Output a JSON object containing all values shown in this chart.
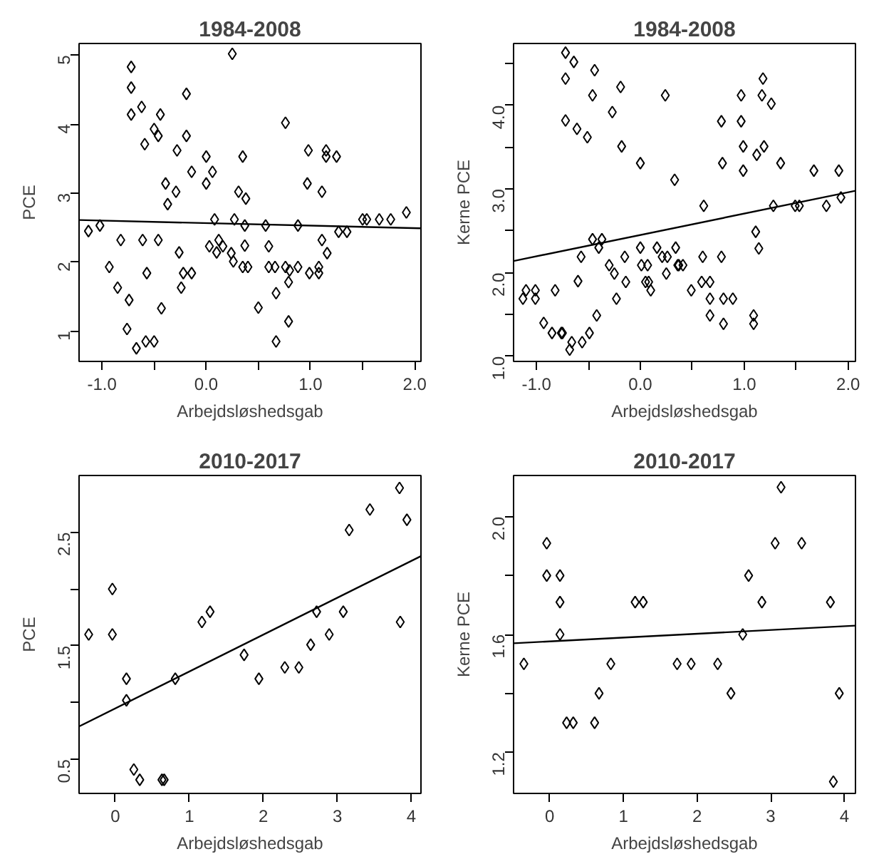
{
  "chart_data": [
    {
      "type": "scatter",
      "title": "1984-2008",
      "xlabel": "Arbejdsløshedsgab",
      "ylabel": "PCE",
      "marker": "diamond",
      "grid": false,
      "xlim": [
        -1.22,
        2.06
      ],
      "ylim": [
        0.56,
        5.17
      ],
      "xticks": [
        {
          "value": -1.0,
          "label": "-1.0"
        },
        {
          "value": -0.5,
          "label": null
        },
        {
          "value": 0,
          "label": "0.0"
        },
        {
          "value": 0.5,
          "label": null
        },
        {
          "value": 1,
          "label": "1.0"
        },
        {
          "value": 1.5,
          "label": null
        },
        {
          "value": 2,
          "label": "2.0"
        }
      ],
      "yticks": [
        1,
        2,
        3,
        4,
        5
      ],
      "series": [
        {
          "color": "#000000",
          "x": [
            -1.13,
            -1.02,
            -0.93,
            -0.85,
            -0.82,
            -0.76,
            -0.74,
            -0.72,
            -0.72,
            -0.72,
            -0.67,
            -0.62,
            -0.59,
            -0.61,
            -0.58,
            -0.57,
            -0.5,
            -0.5,
            -0.46,
            -0.44,
            -0.46,
            -0.43,
            -0.39,
            -0.37,
            -0.29,
            -0.28,
            -0.26,
            -0.24,
            -0.22,
            -0.19,
            -0.19,
            -0.14,
            -0.14,
            0.0,
            0.0,
            0.03,
            0.06,
            0.08,
            0.1,
            0.12,
            0.16,
            0.24,
            0.26,
            0.25,
            0.27,
            0.31,
            0.35,
            0.38,
            0.37,
            0.35,
            0.37,
            0.4,
            0.5,
            0.57,
            0.6,
            0.6,
            0.66,
            0.67,
            0.67,
            0.76,
            0.76,
            0.79,
            0.79,
            0.8,
            0.88,
            0.88,
            0.98,
            0.97,
            0.99,
            1.11,
            1.08,
            1.08,
            1.11,
            1.15,
            1.15,
            1.16,
            1.25,
            1.27,
            1.35,
            1.5,
            1.54,
            1.66,
            1.77,
            1.92
          ],
          "values": [
            2.45,
            2.53,
            1.93,
            1.63,
            2.32,
            1.03,
            1.45,
            4.83,
            4.53,
            4.14,
            0.75,
            4.25,
            3.71,
            2.32,
            0.85,
            1.84,
            0.85,
            3.93,
            3.83,
            4.14,
            2.32,
            1.33,
            3.14,
            2.84,
            3.02,
            3.62,
            2.14,
            1.63,
            1.84,
            4.44,
            3.83,
            3.31,
            1.84,
            3.53,
            3.14,
            2.23,
            3.31,
            2.62,
            2.14,
            2.32,
            2.23,
            2.13,
            2.01,
            5.02,
            2.62,
            3.02,
            3.53,
            2.92,
            2.24,
            1.93,
            2.53,
            1.93,
            1.34,
            2.53,
            2.23,
            1.93,
            1.93,
            1.55,
            0.85,
            4.02,
            1.93,
            1.71,
            1.14,
            1.88,
            2.53,
            1.93,
            3.62,
            3.14,
            1.84,
            3.02,
            1.93,
            1.84,
            2.32,
            3.62,
            3.53,
            2.13,
            3.53,
            2.44,
            2.44,
            2.62,
            2.62,
            2.62,
            2.62,
            2.72
          ]
        },
        {
          "type": "line",
          "marker": "none",
          "color": "#000000",
          "x": [
            -1.22,
            2.06
          ],
          "values": [
            2.61,
            2.49
          ]
        }
      ]
    },
    {
      "type": "scatter",
      "title": "1984-2008",
      "xlabel": "Arbejdsløshedsgab",
      "ylabel": "Kerne PCE",
      "marker": "diamond",
      "grid": false,
      "xlim": [
        -1.22,
        2.07
      ],
      "ylim": [
        0.94,
        4.74
      ],
      "xticks": [
        {
          "value": -1.0,
          "label": "-1.0"
        },
        {
          "value": -0.5,
          "label": null
        },
        {
          "value": 0,
          "label": "0.0"
        },
        {
          "value": 0.5,
          "label": null
        },
        {
          "value": 1,
          "label": "1.0"
        },
        {
          "value": 1.5,
          "label": null
        },
        {
          "value": 2,
          "label": "2.0"
        }
      ],
      "yticks": [
        {
          "value": 1,
          "label": "1.0"
        },
        {
          "value": 1.5,
          "label": null
        },
        {
          "value": 2,
          "label": "2.0"
        },
        {
          "value": 2.5,
          "label": null
        },
        {
          "value": 3,
          "label": "3.0"
        },
        {
          "value": 3.5,
          "label": null
        },
        {
          "value": 4,
          "label": "4.0"
        },
        {
          "value": 4.5,
          "label": null
        }
      ],
      "series": [
        {
          "color": "#000000",
          "x": [
            -1.13,
            -1.1,
            -1.01,
            -1.01,
            -0.93,
            -0.85,
            -0.82,
            -0.76,
            -0.75,
            -0.72,
            -0.72,
            -0.72,
            -0.68,
            -0.66,
            -0.64,
            -0.61,
            -0.6,
            -0.57,
            -0.56,
            -0.51,
            -0.49,
            -0.46,
            -0.46,
            -0.44,
            -0.42,
            -0.4,
            -0.37,
            -0.3,
            -0.27,
            -0.25,
            -0.23,
            -0.19,
            -0.18,
            -0.15,
            -0.14,
            0.0,
            0.0,
            0.01,
            0.05,
            0.07,
            0.08,
            0.1,
            0.16,
            0.21,
            0.24,
            0.25,
            0.26,
            0.33,
            0.34,
            0.36,
            0.37,
            0.41,
            0.49,
            0.61,
            0.6,
            0.59,
            0.67,
            0.67,
            0.67,
            0.78,
            0.79,
            0.78,
            0.8,
            0.8,
            0.89,
            0.97,
            0.97,
            0.99,
            0.99,
            1.09,
            1.09,
            1.11,
            1.12,
            1.14,
            1.18,
            1.17,
            1.19,
            1.26,
            1.28,
            1.35,
            1.49,
            1.53,
            1.67,
            1.79,
            1.91,
            1.93
          ],
          "values": [
            1.69,
            1.79,
            1.79,
            1.69,
            1.4,
            1.28,
            1.79,
            1.28,
            1.28,
            4.63,
            4.32,
            3.82,
            1.08,
            1.17,
            4.52,
            3.72,
            1.9,
            2.19,
            1.17,
            3.62,
            1.28,
            4.12,
            2.4,
            4.42,
            1.49,
            2.3,
            2.4,
            2.09,
            3.92,
            1.99,
            1.69,
            4.22,
            3.51,
            2.19,
            1.89,
            3.31,
            2.3,
            2.09,
            1.89,
            2.09,
            1.89,
            1.79,
            2.3,
            2.19,
            4.12,
            1.99,
            2.19,
            3.11,
            2.3,
            2.09,
            2.09,
            2.09,
            1.79,
            2.8,
            2.19,
            1.89,
            1.89,
            1.69,
            1.49,
            3.81,
            3.31,
            2.19,
            1.69,
            1.39,
            1.69,
            4.12,
            3.81,
            3.51,
            3.22,
            1.49,
            1.39,
            2.49,
            3.41,
            2.29,
            4.32,
            4.12,
            3.51,
            4.02,
            2.8,
            3.31,
            2.8,
            2.8,
            3.22,
            2.8,
            3.22,
            2.9
          ]
        },
        {
          "type": "line",
          "marker": "none",
          "color": "#000000",
          "x": [
            -1.22,
            2.07
          ],
          "values": [
            2.14,
            2.98
          ]
        }
      ]
    },
    {
      "type": "scatter",
      "title": "2010-2017",
      "xlabel": "Arbejdsløshedsgab",
      "ylabel": "PCE",
      "marker": "diamond",
      "grid": false,
      "xlim": [
        -0.49,
        4.13
      ],
      "ylim": [
        0.2,
        3.0
      ],
      "xticks": [
        0,
        1,
        2,
        3,
        4
      ],
      "yticks": [
        0.5,
        {
          "value": 1.0,
          "label": null
        },
        1.5,
        {
          "value": 2.0,
          "label": null
        },
        2.5
      ],
      "series": [
        {
          "color": "#000000",
          "x": [
            -0.36,
            -0.04,
            -0.04,
            0.15,
            0.15,
            0.25,
            0.33,
            0.63,
            0.66,
            0.81,
            1.17,
            1.28,
            1.74,
            1.94,
            2.29,
            2.48,
            2.64,
            2.72,
            2.89,
            3.08,
            3.16,
            3.44,
            3.84,
            3.85,
            3.94
          ],
          "values": [
            1.6,
            2.0,
            1.6,
            1.21,
            1.02,
            0.41,
            0.32,
            0.32,
            0.32,
            1.21,
            1.71,
            1.8,
            1.42,
            1.21,
            1.31,
            1.31,
            1.51,
            1.8,
            1.6,
            1.8,
            2.52,
            2.7,
            2.89,
            1.71,
            2.61
          ]
        },
        {
          "type": "line",
          "marker": "none",
          "color": "#000000",
          "x": [
            -0.49,
            4.13
          ],
          "values": [
            0.79,
            2.29
          ]
        }
      ]
    },
    {
      "type": "scatter",
      "title": "2010-2017",
      "xlabel": "Arbejdsløshedsgab",
      "ylabel": "Kerne PCE",
      "marker": "diamond",
      "grid": false,
      "xlim": [
        -0.49,
        4.15
      ],
      "ylim": [
        1.06,
        2.14
      ],
      "xticks": [
        0,
        1,
        2,
        3,
        4
      ],
      "yticks": [
        1.2,
        {
          "value": 1.4,
          "label": null
        },
        1.6,
        {
          "value": 1.8,
          "label": null
        },
        {
          "value": 2,
          "label": "2.0"
        }
      ],
      "series": [
        {
          "color": "#000000",
          "x": [
            -0.35,
            -0.04,
            -0.04,
            0.14,
            0.14,
            0.14,
            0.23,
            0.32,
            0.61,
            0.67,
            0.83,
            1.16,
            1.27,
            1.73,
            1.92,
            2.28,
            2.46,
            2.62,
            2.7,
            2.88,
            3.06,
            3.14,
            3.42,
            3.81,
            3.85,
            3.93
          ],
          "values": [
            1.5,
            1.91,
            1.8,
            1.8,
            1.71,
            1.6,
            1.3,
            1.3,
            1.3,
            1.4,
            1.5,
            1.71,
            1.71,
            1.5,
            1.5,
            1.5,
            1.4,
            1.6,
            1.8,
            1.71,
            1.91,
            2.1,
            1.91,
            1.71,
            1.1,
            1.4
          ]
        },
        {
          "type": "line",
          "marker": "none",
          "color": "#000000",
          "x": [
            -0.49,
            4.15
          ],
          "values": [
            1.57,
            1.63
          ]
        }
      ]
    }
  ]
}
